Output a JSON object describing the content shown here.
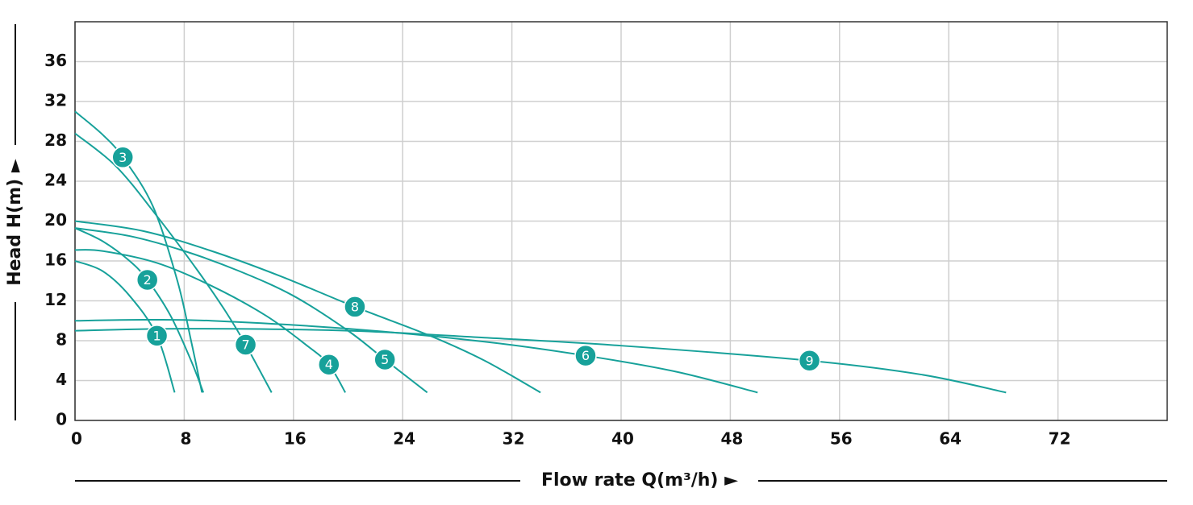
{
  "chart_data": {
    "type": "line",
    "xlabel": "Flow rate Q(m³/h) ►",
    "ylabel": "Head H(m) ►",
    "xlim": [
      0,
      80
    ],
    "ylim": [
      0,
      40
    ],
    "xticks": [
      0,
      8,
      16,
      24,
      32,
      40,
      48,
      56,
      64,
      72
    ],
    "yticks": [
      0,
      4,
      8,
      12,
      16,
      20,
      24,
      28,
      32,
      36
    ],
    "grid": true,
    "color": "#17a19a",
    "series": [
      {
        "name": "1",
        "x": [
          0,
          2,
          4,
          6,
          7.3
        ],
        "values": [
          16,
          15,
          12.5,
          8.5,
          2.8
        ]
      },
      {
        "name": "2",
        "x": [
          0,
          2,
          4,
          5.3,
          7,
          8.5,
          9.4
        ],
        "values": [
          19.3,
          18,
          16,
          14.1,
          10.5,
          6,
          2.8
        ]
      },
      {
        "name": "3",
        "x": [
          0,
          2,
          3.5,
          5.7,
          7.5,
          8.5,
          9.3
        ],
        "values": [
          31,
          28.7,
          26.4,
          21.5,
          14,
          8,
          2.8
        ]
      },
      {
        "name": "4",
        "x": [
          0,
          2,
          6,
          10,
          14,
          17,
          18.6,
          19.8
        ],
        "values": [
          17.1,
          17,
          15.8,
          13.5,
          10.5,
          7.5,
          5.6,
          2.8
        ]
      },
      {
        "name": "5",
        "x": [
          0,
          4,
          8,
          12,
          16,
          20,
          22.7,
          25.8
        ],
        "values": [
          19.3,
          18.5,
          17,
          15,
          12.5,
          9,
          6.1,
          2.8
        ]
      },
      {
        "name": "6",
        "x": [
          0,
          5,
          10,
          20,
          30,
          37.4,
          44,
          50
        ],
        "values": [
          10,
          10.1,
          10,
          9.2,
          7.9,
          6.5,
          4.9,
          2.8
        ]
      },
      {
        "name": "7",
        "x": [
          0,
          3,
          6,
          9,
          11,
          12.5,
          14.4
        ],
        "values": [
          28.8,
          25.5,
          20.5,
          15,
          11,
          7.6,
          2.8
        ]
      },
      {
        "name": "8",
        "x": [
          0,
          5,
          10,
          15,
          20.5,
          26,
          30,
          34.1
        ],
        "values": [
          20,
          19,
          17,
          14.5,
          11.4,
          8.5,
          6,
          2.8
        ]
      },
      {
        "name": "9",
        "x": [
          0,
          8,
          20,
          30,
          40,
          53.8,
          62,
          68.2
        ],
        "values": [
          9,
          9.2,
          9,
          8.3,
          7.5,
          6,
          4.6,
          2.8
        ]
      }
    ]
  }
}
